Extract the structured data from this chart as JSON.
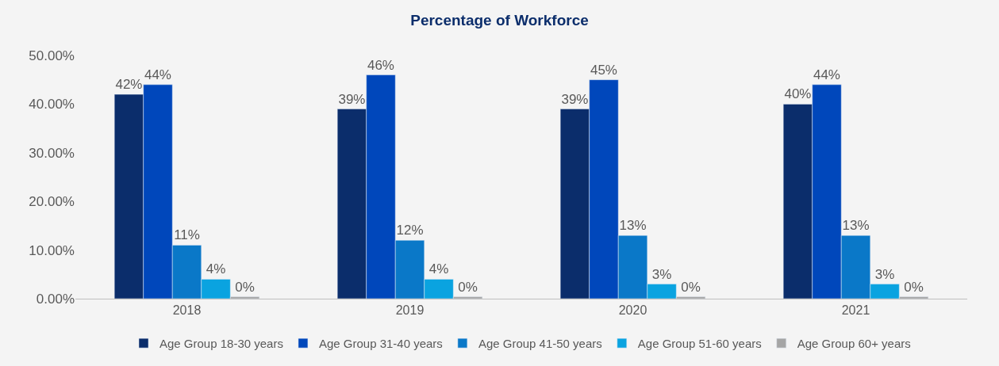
{
  "chart_data": {
    "type": "bar",
    "title": "Percentage of Workforce",
    "categories": [
      "2018",
      "2019",
      "2020",
      "2021"
    ],
    "series": [
      {
        "name": "Age Group 18-30 years",
        "color": "#0b2d6b",
        "values": [
          42,
          39,
          39,
          40
        ],
        "value_labels": [
          "42%",
          "39%",
          "39%",
          "40%"
        ]
      },
      {
        "name": "Age Group 31-40 years",
        "color": "#0047bb",
        "values": [
          44,
          46,
          45,
          44
        ],
        "value_labels": [
          "44%",
          "46%",
          "45%",
          "44%"
        ]
      },
      {
        "name": "Age Group 41-50 years",
        "color": "#0a78c8",
        "values": [
          11,
          12,
          13,
          13
        ],
        "value_labels": [
          "11%",
          "12%",
          "13%",
          "13%"
        ]
      },
      {
        "name": "Age Group 51-60 years",
        "color": "#0aa3e0",
        "values": [
          4,
          4,
          3,
          3
        ],
        "value_labels": [
          "4%",
          "4%",
          "3%",
          "3%"
        ]
      },
      {
        "name": "Age Group 60+ years",
        "color": "#a5a5a5",
        "values": [
          0.4,
          0.4,
          0.4,
          0.4
        ],
        "value_labels": [
          "0%",
          "0%",
          "0%",
          "0%"
        ]
      }
    ],
    "ylim": [
      0,
      50
    ],
    "yticks": [
      {
        "value": 0,
        "label": "0.00%"
      },
      {
        "value": 10,
        "label": "10.00%"
      },
      {
        "value": 20,
        "label": "20.00%"
      },
      {
        "value": 30,
        "label": "30.00%"
      },
      {
        "value": 40,
        "label": "40.00%"
      },
      {
        "value": 50,
        "label": "50.00%"
      }
    ],
    "grid": false,
    "legend": "bottom"
  }
}
